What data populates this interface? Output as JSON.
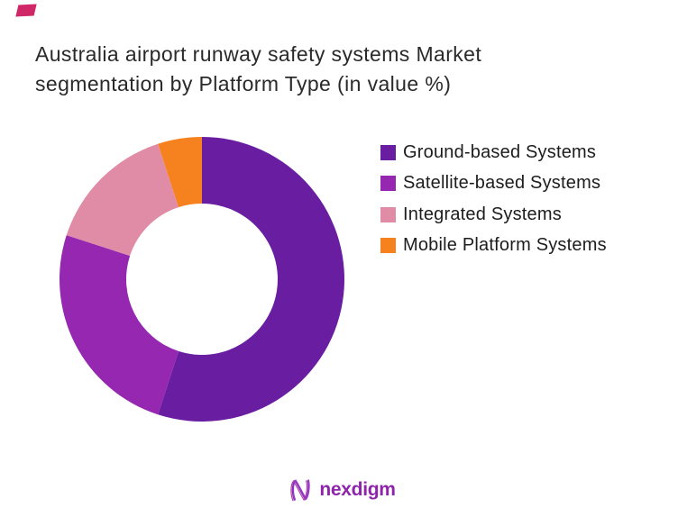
{
  "page": {
    "background": "#ffffff",
    "accent_color": "#d02768"
  },
  "title": {
    "line1": "Australia airport runway safety systems Market",
    "line2": "segmentation by Platform Type (in value %)",
    "color": "#2a2a2a"
  },
  "chart_data": {
    "type": "pie",
    "subtype": "donut",
    "title": "Australia airport runway safety systems Market segmentation by Platform Type (in value %)",
    "unit": "value %",
    "labels": [
      "Ground-based Systems",
      "Satellite-based Systems",
      "Integrated Systems",
      "Mobile Platform Systems"
    ],
    "values": [
      55,
      25,
      15,
      5
    ],
    "colors": [
      "#691ea2",
      "#9527b0",
      "#e08ca7",
      "#f5821f"
    ],
    "start_angle_deg": 0,
    "direction": "clockwise",
    "inner_radius_ratio": 0.53,
    "legend_position": "right",
    "data_labels": "none",
    "background": "#ffffff"
  },
  "footer": {
    "brand": "nexdigm",
    "brand_color": "#8e24aa",
    "logo_icon": "n-wave-logo",
    "logo_stroke_colors": [
      "#7f2bad",
      "#b43fb0",
      "#9a34c9"
    ]
  }
}
